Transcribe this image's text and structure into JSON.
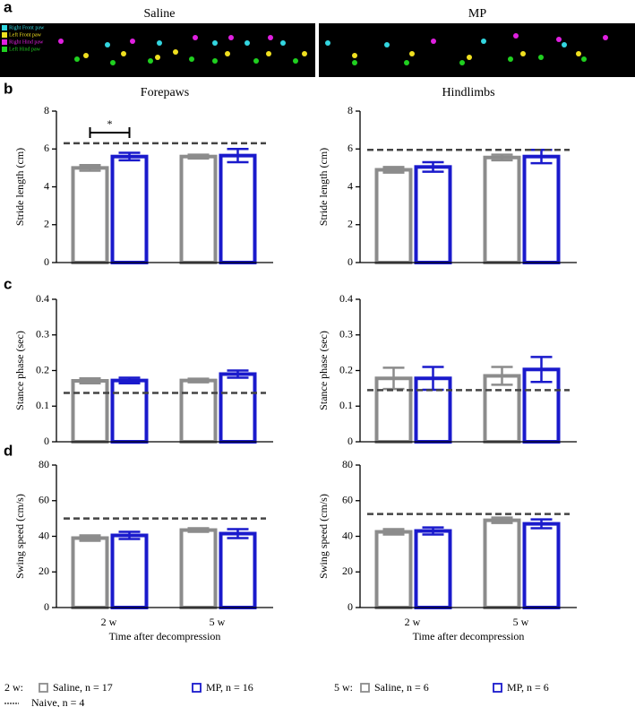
{
  "panel_labels": [
    "a",
    "b",
    "c",
    "d"
  ],
  "image_panel": {
    "titles": [
      "Saline",
      "MP"
    ],
    "legend": [
      {
        "text": "Right Front paw",
        "color": "#33d6e0"
      },
      {
        "text": "Left Front paw",
        "color": "#f0e020"
      },
      {
        "text": "Right Hind paw",
        "color": "#e020e0"
      },
      {
        "text": "Left Hind paw",
        "color": "#20d020"
      }
    ]
  },
  "chart_data": [
    {
      "type": "bar",
      "title": "Forepaws",
      "ylabel": "Stride length (cm)",
      "categories": [
        null,
        null
      ],
      "ylim": [
        0,
        8
      ],
      "yticks": [
        0,
        2,
        4,
        6,
        8
      ],
      "annotation": "*",
      "series": [
        {
          "color": "#8c8c8c",
          "values": [
            5.0,
            5.6
          ],
          "errors": [
            0.15,
            0.1
          ]
        },
        {
          "color": "#1a1acc",
          "values": [
            5.6,
            5.65
          ],
          "errors": [
            0.2,
            0.35
          ]
        }
      ],
      "reference": 6.3
    },
    {
      "type": "bar",
      "title": "Hindlimbs",
      "ylabel": "Stride length (cm)",
      "categories": [
        null,
        null
      ],
      "ylim": [
        0,
        8
      ],
      "yticks": [
        0,
        2,
        4,
        6,
        8
      ],
      "series": [
        {
          "color": "#8c8c8c",
          "values": [
            4.9,
            5.55
          ],
          "errors": [
            0.15,
            0.15
          ]
        },
        {
          "color": "#1a1acc",
          "values": [
            5.05,
            5.6
          ],
          "errors": [
            0.25,
            0.35
          ]
        }
      ],
      "reference": 5.95
    },
    {
      "type": "bar",
      "ylabel": "Stance phase (sec)",
      "categories": [
        null,
        null
      ],
      "ylim": [
        0,
        0.4
      ],
      "yticks": [
        0,
        0.1,
        0.2,
        0.3,
        0.4
      ],
      "series": [
        {
          "color": "#8c8c8c",
          "values": [
            0.171,
            0.172
          ],
          "errors": [
            0.007,
            0.005
          ]
        },
        {
          "color": "#1a1acc",
          "values": [
            0.172,
            0.19
          ],
          "errors": [
            0.008,
            0.01
          ]
        }
      ],
      "reference": 0.137
    },
    {
      "type": "bar",
      "ylabel": "Stance phase (sec)",
      "categories": [
        null,
        null
      ],
      "ylim": [
        0,
        0.4
      ],
      "yticks": [
        0,
        0.1,
        0.2,
        0.3,
        0.4
      ],
      "series": [
        {
          "color": "#8c8c8c",
          "values": [
            0.178,
            0.185
          ],
          "errors": [
            0.03,
            0.025
          ]
        },
        {
          "color": "#1a1acc",
          "values": [
            0.178,
            0.203
          ],
          "errors": [
            0.032,
            0.035
          ]
        }
      ],
      "reference": 0.145
    },
    {
      "type": "bar",
      "ylabel": "Swing speed (cm/s)",
      "xlabel": "Time after decompression",
      "categories": [
        "2 w",
        "5 w"
      ],
      "ylim": [
        0,
        80
      ],
      "yticks": [
        0,
        20,
        40,
        60,
        80
      ],
      "series": [
        {
          "color": "#8c8c8c",
          "values": [
            39,
            43.5
          ],
          "errors": [
            1.5,
            1
          ]
        },
        {
          "color": "#1a1acc",
          "values": [
            40.5,
            41.5
          ],
          "errors": [
            2,
            2.5
          ]
        }
      ],
      "reference": 50
    },
    {
      "type": "bar",
      "ylabel": "Swing speed (cm/s)",
      "xlabel": "Time after decompression",
      "categories": [
        "2 w",
        "5 w"
      ],
      "ylim": [
        0,
        80
      ],
      "yticks": [
        0,
        20,
        40,
        60,
        80
      ],
      "series": [
        {
          "color": "#8c8c8c",
          "values": [
            42.5,
            49
          ],
          "errors": [
            1.5,
            1.5
          ]
        },
        {
          "color": "#1a1acc",
          "values": [
            43,
            47
          ],
          "errors": [
            2,
            2.5
          ]
        }
      ],
      "reference": 52.5
    }
  ],
  "legend": {
    "groups": [
      {
        "label": "2 w:",
        "items": [
          {
            "text": "Saline, n = 17",
            "color": "#8c8c8c"
          },
          {
            "text": "MP, n = 16",
            "color": "#1a1acc"
          }
        ]
      },
      {
        "label": "5 w:",
        "items": [
          {
            "text": "Saline, n = 6",
            "color": "#8c8c8c"
          },
          {
            "text": "MP, n = 6",
            "color": "#1a1acc"
          }
        ]
      }
    ],
    "naive": "Naive, n = 4"
  }
}
